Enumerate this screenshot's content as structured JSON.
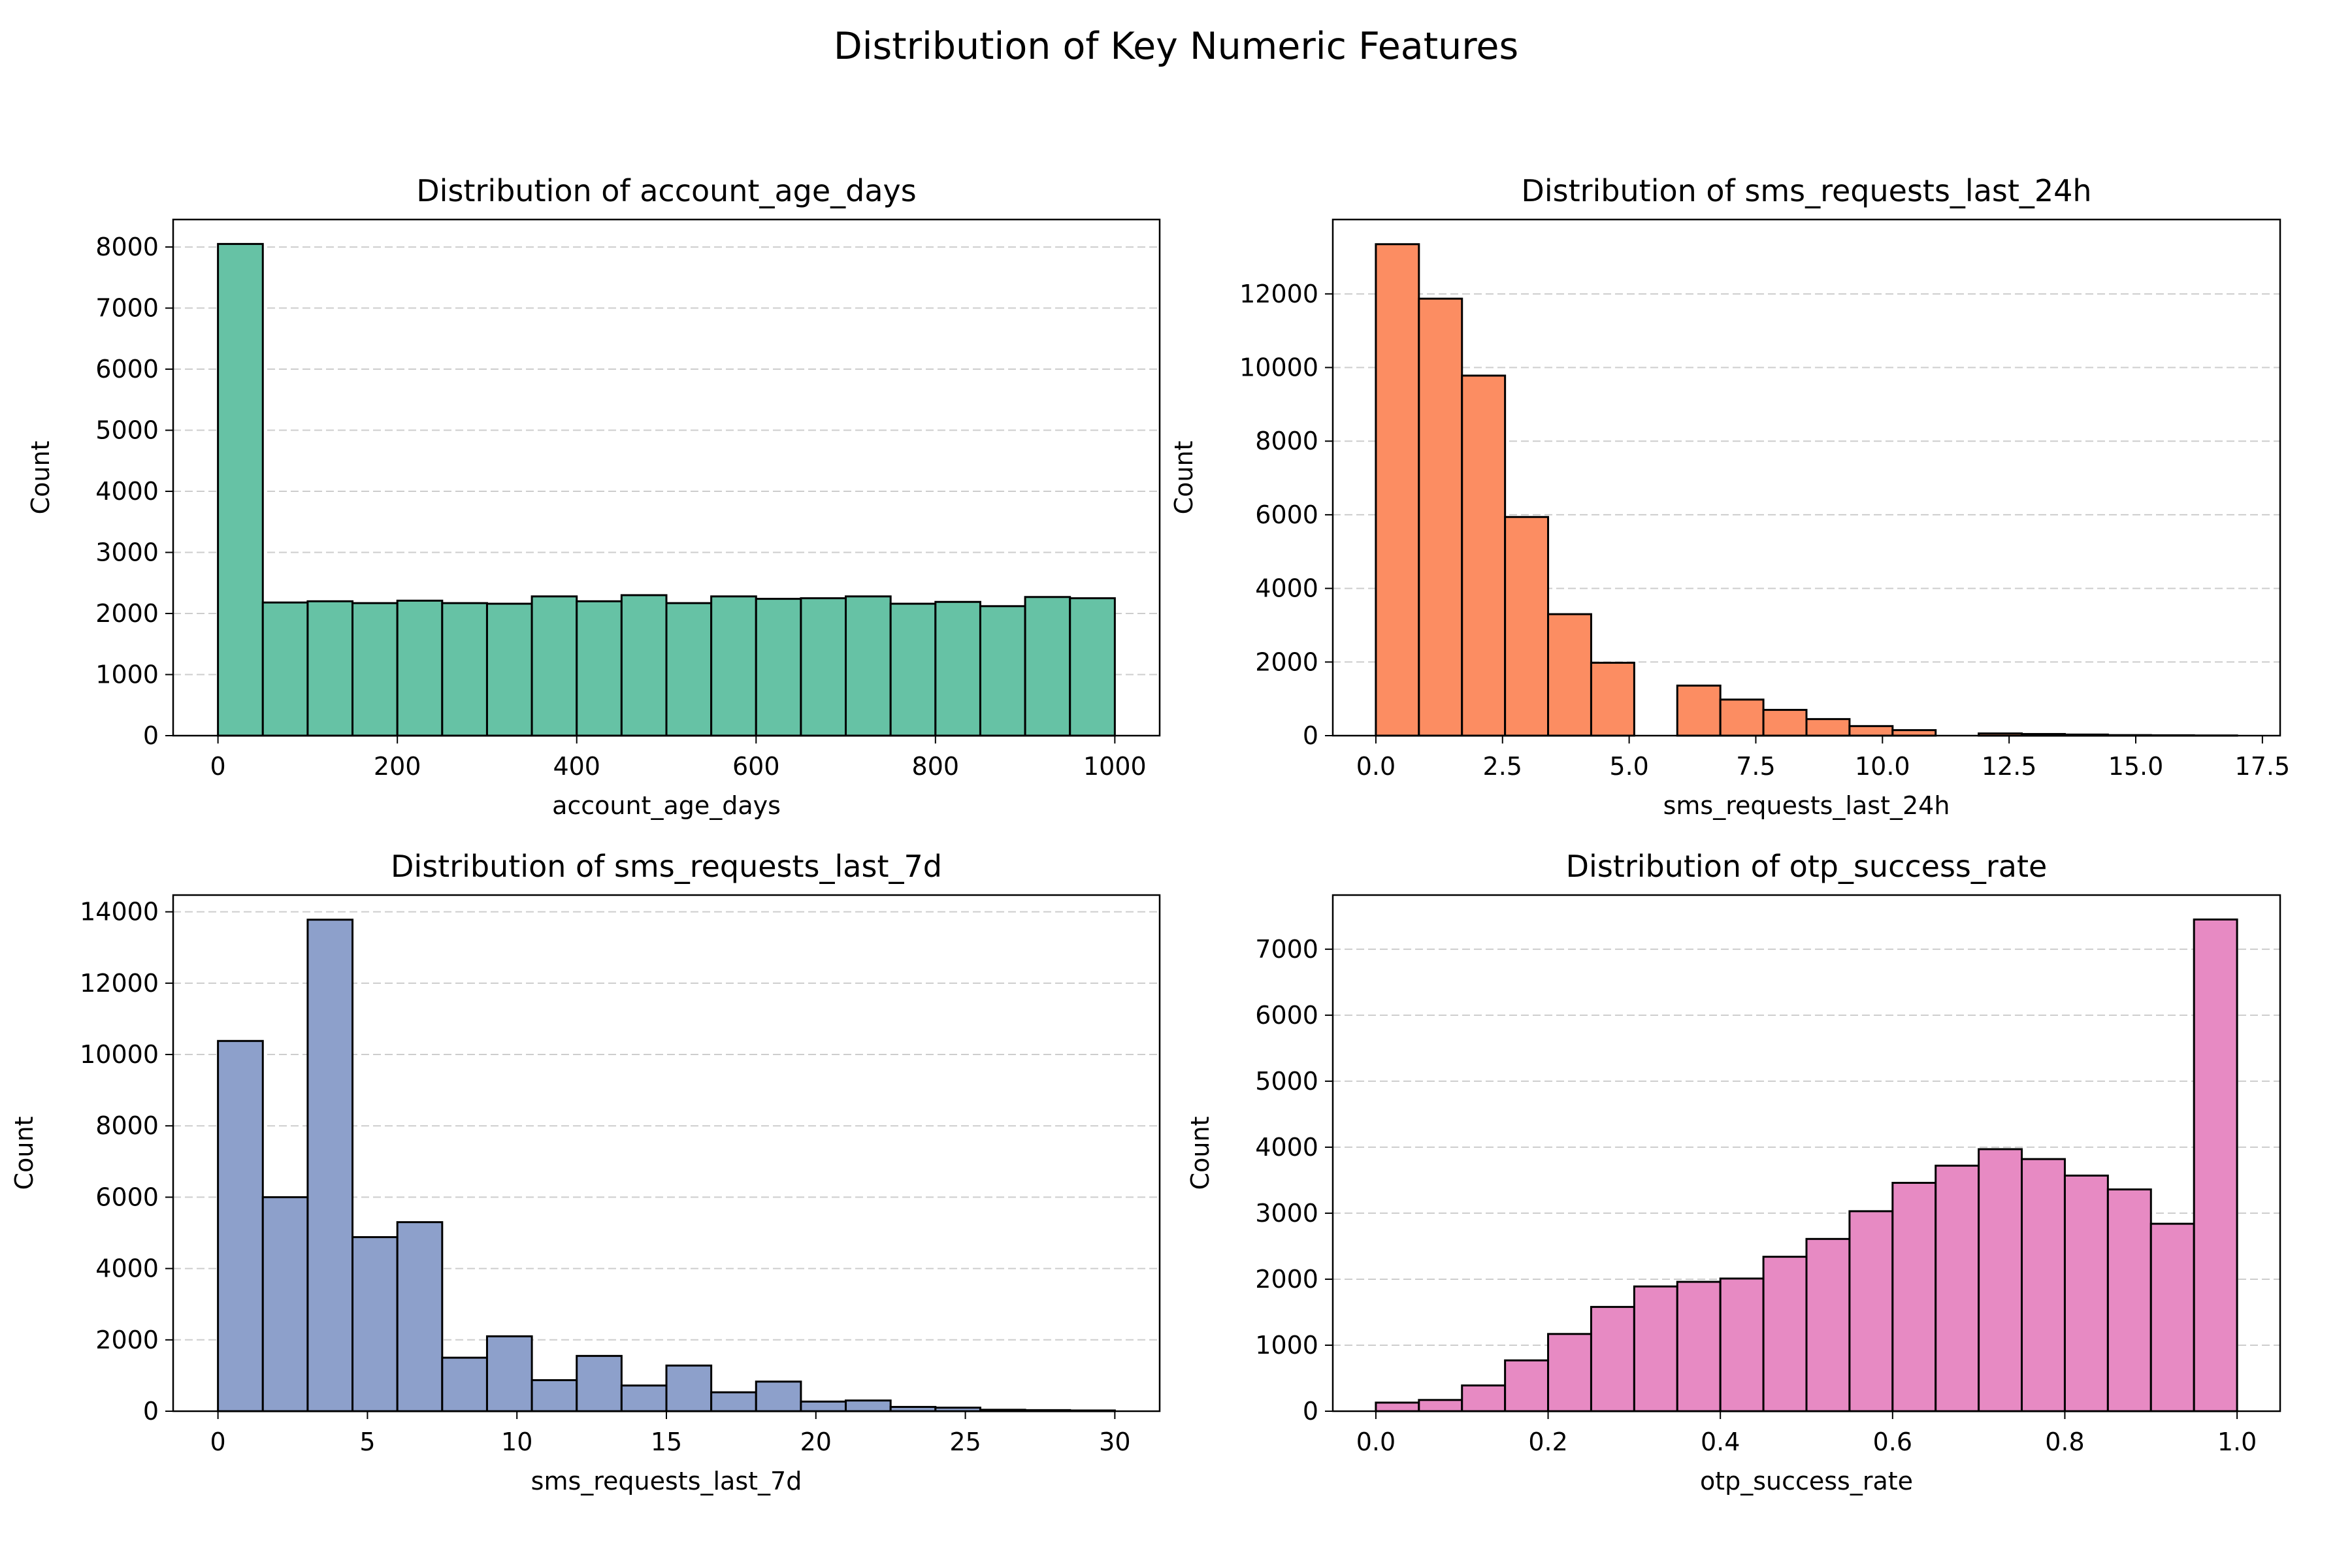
{
  "figure_title": "Distribution of Key Numeric Features",
  "chart_data": [
    {
      "type": "bar",
      "title": "Distribution of account_age_days",
      "xlabel": "account_age_days",
      "ylabel": "Count",
      "color": "#66c2a5",
      "bin_edges": [
        0,
        50,
        100,
        150,
        200,
        250,
        300,
        350,
        400,
        450,
        500,
        550,
        600,
        650,
        700,
        750,
        800,
        850,
        900,
        950,
        1000
      ],
      "values": [
        8050,
        2180,
        2200,
        2170,
        2210,
        2170,
        2160,
        2280,
        2200,
        2300,
        2170,
        2280,
        2240,
        2250,
        2280,
        2160,
        2190,
        2120,
        2270,
        2250
      ],
      "xlim": [
        -50,
        1050
      ],
      "ylim": [
        0,
        8450
      ],
      "xticks": [
        0,
        200,
        400,
        600,
        800,
        1000
      ],
      "xtick_labels": [
        "0",
        "200",
        "400",
        "600",
        "800",
        "1000"
      ],
      "yticks": [
        0,
        1000,
        2000,
        3000,
        4000,
        5000,
        6000,
        7000,
        8000
      ],
      "ytick_labels": [
        "0",
        "1000",
        "2000",
        "3000",
        "4000",
        "5000",
        "6000",
        "7000",
        "8000"
      ],
      "grid": "y-dashed"
    },
    {
      "type": "bar",
      "title": "Distribution of sms_requests_last_24h",
      "xlabel": "sms_requests_last_24h",
      "ylabel": "Count",
      "color": "#fc8d62",
      "bin_edges": [
        0,
        0.85,
        1.7,
        2.55,
        3.4,
        4.25,
        5.1,
        5.95,
        6.8,
        7.65,
        8.5,
        9.35,
        10.2,
        11.05,
        11.9,
        12.75,
        13.6,
        14.45,
        15.3,
        16.15,
        17.0
      ],
      "values": [
        13350,
        11870,
        9780,
        5940,
        3300,
        1980,
        0,
        1360,
        980,
        700,
        450,
        260,
        150,
        0,
        60,
        45,
        30,
        15,
        10,
        5
      ],
      "xlim": [
        -0.85,
        17.85
      ],
      "ylim": [
        0,
        14020
      ],
      "xticks": [
        0,
        2.5,
        5,
        7.5,
        10,
        12.5,
        15,
        17.5
      ],
      "xtick_labels": [
        "0.0",
        "2.5",
        "5.0",
        "7.5",
        "10.0",
        "12.5",
        "15.0",
        "17.5"
      ],
      "yticks": [
        0,
        2000,
        4000,
        6000,
        8000,
        10000,
        12000
      ],
      "ytick_labels": [
        "0",
        "2000",
        "4000",
        "6000",
        "8000",
        "10000",
        "12000"
      ],
      "grid": "y-dashed"
    },
    {
      "type": "bar",
      "title": "Distribution of sms_requests_last_7d",
      "xlabel": "sms_requests_last_7d",
      "ylabel": "Count",
      "color": "#8da0cb",
      "bin_edges": [
        0,
        1.5,
        3,
        4.5,
        6,
        7.5,
        9,
        10.5,
        12,
        13.5,
        15,
        16.5,
        18,
        19.5,
        21,
        22.5,
        24,
        25.5,
        27,
        28.5,
        30
      ],
      "values": [
        10380,
        6000,
        13780,
        4880,
        5300,
        1500,
        2100,
        870,
        1550,
        720,
        1280,
        530,
        830,
        270,
        300,
        120,
        100,
        40,
        30,
        20
      ],
      "xlim": [
        -1.5,
        31.5
      ],
      "ylim": [
        0,
        14470
      ],
      "xticks": [
        0,
        5,
        10,
        15,
        20,
        25,
        30
      ],
      "xtick_labels": [
        "0",
        "5",
        "10",
        "15",
        "20",
        "25",
        "30"
      ],
      "yticks": [
        0,
        2000,
        4000,
        6000,
        8000,
        10000,
        12000,
        14000
      ],
      "ytick_labels": [
        "0",
        "2000",
        "4000",
        "6000",
        "8000",
        "10000",
        "12000",
        "14000"
      ],
      "grid": "y-dashed"
    },
    {
      "type": "bar",
      "title": "Distribution of otp_success_rate",
      "xlabel": "otp_success_rate",
      "ylabel": "Count",
      "color": "#e78ac3",
      "bin_edges": [
        0,
        0.05,
        0.1,
        0.15,
        0.2,
        0.25,
        0.3,
        0.35,
        0.4,
        0.45,
        0.5,
        0.55,
        0.6,
        0.65,
        0.7,
        0.75,
        0.8,
        0.85,
        0.9,
        0.95,
        1.0
      ],
      "values": [
        130,
        170,
        390,
        770,
        1170,
        1580,
        1890,
        1960,
        2010,
        2340,
        2610,
        3030,
        3460,
        3720,
        3970,
        3820,
        3570,
        3360,
        2840,
        7450
      ],
      "xlim": [
        -0.05,
        1.05
      ],
      "ylim": [
        0,
        7820
      ],
      "xticks": [
        0,
        0.2,
        0.4,
        0.6,
        0.8,
        1.0
      ],
      "xtick_labels": [
        "0.0",
        "0.2",
        "0.4",
        "0.6",
        "0.8",
        "1.0"
      ],
      "yticks": [
        0,
        1000,
        2000,
        3000,
        4000,
        5000,
        6000,
        7000
      ],
      "ytick_labels": [
        "0",
        "1000",
        "2000",
        "3000",
        "4000",
        "5000",
        "6000",
        "7000"
      ],
      "grid": "y-dashed"
    }
  ]
}
